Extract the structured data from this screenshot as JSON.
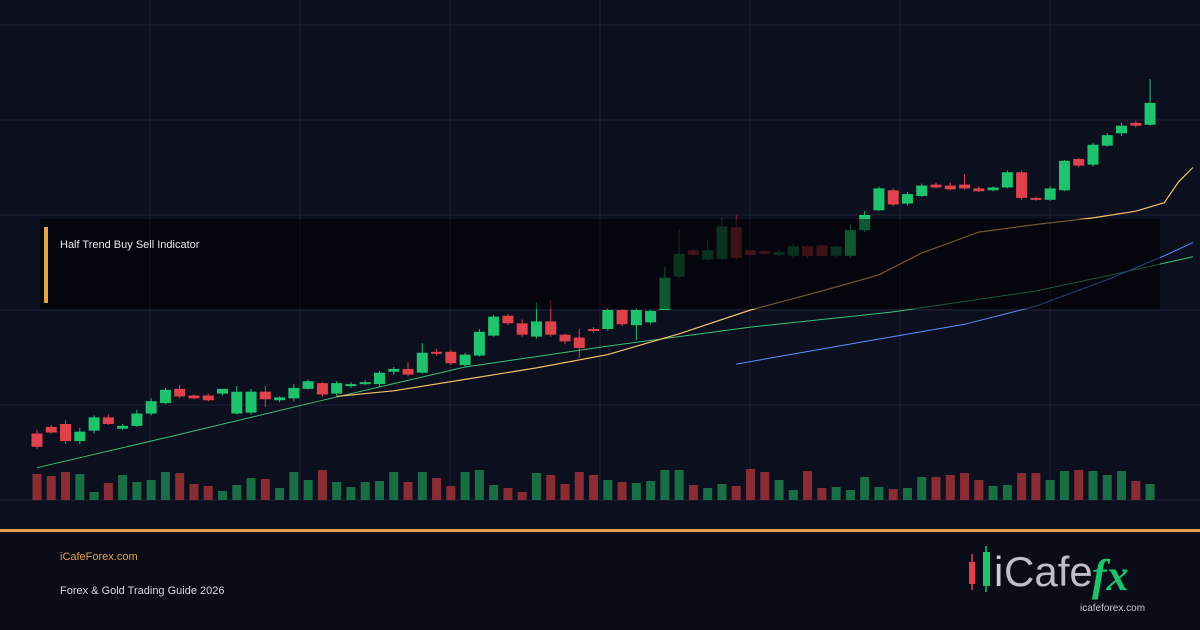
{
  "overlay": {
    "title": "Half Trend Buy Sell Indicator"
  },
  "footer": {
    "site": "iCafeForex.com",
    "guide": "Forex & Gold Trading Guide 2026"
  },
  "logo": {
    "text_i": "i",
    "text_cafe": "Cafe",
    "text_fx": "fx",
    "site": "icafeforex.com"
  },
  "colors": {
    "up": "#1fc36e",
    "up_dim": "#1a6e45",
    "down": "#e0424d",
    "down_dim": "#8a2c33",
    "ma_fast": "#f2c26a",
    "ma_slow": "#3fbf77",
    "ma_mid": "#5f8fff",
    "grid": "#1e2338",
    "accent": "#e2a24a"
  },
  "chart_data": {
    "type": "candlestick",
    "title": "",
    "xlabel": "",
    "ylabel": "",
    "grid": true,
    "ylim": [
      0,
      500
    ],
    "candles": [
      [
        0,
        430,
        444,
        446,
        426
      ],
      [
        1,
        423,
        429,
        430,
        421
      ],
      [
        2,
        420,
        438,
        441,
        416
      ],
      [
        3,
        438,
        428,
        441,
        424
      ],
      [
        4,
        427,
        413,
        430,
        411
      ],
      [
        5,
        413,
        420,
        421,
        410
      ],
      [
        6,
        425,
        422,
        426,
        420
      ],
      [
        7,
        422,
        409,
        423,
        405
      ],
      [
        8,
        409,
        396,
        411,
        393
      ],
      [
        9,
        398,
        384,
        399,
        382
      ],
      [
        10,
        383,
        391,
        393,
        379
      ],
      [
        11,
        390,
        393,
        394,
        389
      ],
      [
        12,
        390,
        395,
        396,
        388
      ],
      [
        13,
        388,
        383,
        390,
        386
      ],
      [
        14,
        409,
        386,
        410,
        380
      ],
      [
        15,
        408,
        386,
        410,
        383
      ],
      [
        16,
        386,
        394,
        402,
        380
      ],
      [
        17,
        395,
        392,
        397,
        391
      ],
      [
        18,
        393,
        382,
        396,
        378
      ],
      [
        19,
        383,
        375,
        384,
        373
      ],
      [
        20,
        377,
        389,
        391,
        376
      ],
      [
        21,
        388,
        377,
        390,
        375
      ],
      [
        22,
        380,
        378,
        382,
        376
      ],
      [
        23,
        378,
        376,
        379,
        374
      ],
      [
        24,
        378,
        366,
        381,
        364
      ],
      [
        25,
        365,
        362,
        368,
        360
      ],
      [
        26,
        362,
        368,
        370,
        355
      ],
      [
        27,
        366,
        345,
        367,
        335
      ],
      [
        28,
        344,
        345,
        348,
        341
      ],
      [
        29,
        344,
        356,
        358,
        342
      ],
      [
        30,
        358,
        347,
        360,
        345
      ],
      [
        31,
        348,
        323,
        349,
        320
      ],
      [
        32,
        327,
        307,
        328,
        305
      ],
      [
        33,
        306,
        314,
        316,
        304
      ],
      [
        34,
        314,
        326,
        328,
        310
      ],
      [
        35,
        328,
        312,
        330,
        292
      ],
      [
        36,
        312,
        326,
        328,
        290
      ],
      [
        37,
        326,
        333,
        336,
        325
      ],
      [
        38,
        329,
        340,
        350,
        320
      ],
      [
        39,
        320,
        321,
        324,
        318
      ],
      [
        40,
        320,
        300,
        322,
        298
      ],
      [
        41,
        300,
        315,
        317,
        299
      ],
      [
        42,
        316,
        300,
        332,
        298
      ],
      [
        43,
        313,
        301,
        315,
        300
      ],
      [
        44,
        300,
        266,
        300,
        255
      ],
      [
        45,
        265,
        241,
        267,
        215
      ],
      [
        46,
        237,
        242,
        244,
        236
      ],
      [
        47,
        247,
        237,
        249,
        227
      ],
      [
        48,
        246,
        212,
        247,
        203
      ],
      [
        49,
        213,
        245,
        248,
        200
      ],
      [
        50,
        237,
        242,
        243,
        236
      ],
      [
        51,
        238,
        241,
        242,
        237
      ],
      [
        52,
        242,
        239,
        243,
        237
      ],
      [
        53,
        243,
        233,
        245,
        230
      ],
      [
        54,
        233,
        243,
        245,
        232
      ],
      [
        55,
        232,
        243,
        244,
        231
      ],
      [
        56,
        243,
        233,
        245,
        232
      ],
      [
        57,
        243,
        216,
        245,
        210
      ],
      [
        58,
        216,
        200,
        218,
        196
      ],
      [
        59,
        195,
        172,
        196,
        170
      ],
      [
        60,
        174,
        189,
        191,
        172
      ],
      [
        61,
        188,
        178,
        190,
        176
      ],
      [
        62,
        180,
        169,
        181,
        167
      ],
      [
        63,
        168,
        171,
        172,
        166
      ],
      [
        64,
        169,
        173,
        174,
        166
      ],
      [
        65,
        168,
        172,
        173,
        157
      ],
      [
        66,
        172,
        175,
        176,
        170
      ],
      [
        67,
        174,
        171,
        175,
        170
      ],
      [
        68,
        171,
        155,
        172,
        153
      ],
      [
        69,
        155,
        182,
        184,
        153
      ],
      [
        70,
        182,
        184,
        185,
        181
      ],
      [
        71,
        184,
        172,
        185,
        170
      ],
      [
        72,
        174,
        143,
        175,
        142
      ],
      [
        73,
        141,
        148,
        150,
        140
      ],
      [
        74,
        147,
        126,
        149,
        124
      ],
      [
        75,
        127,
        116,
        128,
        114
      ],
      [
        76,
        114,
        106,
        117,
        103
      ],
      [
        77,
        103,
        106,
        108,
        101
      ],
      [
        78,
        105,
        82,
        106,
        57
      ]
    ],
    "volume": [
      [
        0,
        26
      ],
      [
        1,
        24
      ],
      [
        2,
        28
      ],
      [
        3,
        26
      ],
      [
        4,
        8
      ],
      [
        5,
        17
      ],
      [
        6,
        25
      ],
      [
        7,
        18
      ],
      [
        8,
        20
      ],
      [
        9,
        28
      ],
      [
        10,
        27
      ],
      [
        11,
        16
      ],
      [
        12,
        14
      ],
      [
        13,
        9
      ],
      [
        14,
        15
      ],
      [
        15,
        22
      ],
      [
        16,
        21
      ],
      [
        17,
        12
      ],
      [
        18,
        28
      ],
      [
        19,
        20
      ],
      [
        20,
        30
      ],
      [
        21,
        18
      ],
      [
        22,
        13
      ],
      [
        23,
        18
      ],
      [
        24,
        19
      ],
      [
        25,
        28
      ],
      [
        26,
        18
      ],
      [
        27,
        28
      ],
      [
        28,
        22
      ],
      [
        29,
        14
      ],
      [
        30,
        28
      ],
      [
        31,
        30
      ],
      [
        32,
        15
      ],
      [
        33,
        12
      ],
      [
        34,
        8
      ],
      [
        35,
        27
      ],
      [
        36,
        25
      ],
      [
        37,
        16
      ],
      [
        38,
        28
      ],
      [
        39,
        25
      ],
      [
        40,
        20
      ],
      [
        41,
        18
      ],
      [
        42,
        17
      ],
      [
        43,
        19
      ],
      [
        44,
        30
      ],
      [
        45,
        30
      ],
      [
        46,
        15
      ],
      [
        47,
        12
      ],
      [
        48,
        16
      ],
      [
        49,
        14
      ],
      [
        50,
        31
      ],
      [
        51,
        28
      ],
      [
        52,
        20
      ],
      [
        53,
        10
      ],
      [
        54,
        29
      ],
      [
        55,
        12
      ],
      [
        56,
        13
      ],
      [
        57,
        10
      ],
      [
        58,
        23
      ],
      [
        59,
        13
      ],
      [
        60,
        11
      ],
      [
        61,
        12
      ],
      [
        62,
        23
      ],
      [
        63,
        23
      ],
      [
        64,
        25
      ],
      [
        65,
        27
      ],
      [
        66,
        20
      ],
      [
        67,
        14
      ],
      [
        68,
        15
      ],
      [
        69,
        27
      ],
      [
        70,
        27
      ],
      [
        71,
        20
      ],
      [
        72,
        29
      ],
      [
        73,
        30
      ],
      [
        74,
        29
      ],
      [
        75,
        25
      ],
      [
        76,
        29
      ],
      [
        77,
        19
      ],
      [
        78,
        16
      ]
    ],
    "ma_fast": [
      [
        21,
        391
      ],
      [
        25,
        385
      ],
      [
        30,
        373
      ],
      [
        35,
        361
      ],
      [
        40,
        347
      ],
      [
        45,
        325
      ],
      [
        50,
        300
      ],
      [
        55,
        280
      ],
      [
        59,
        263
      ],
      [
        62,
        240
      ],
      [
        66,
        218
      ],
      [
        70,
        210
      ],
      [
        74,
        203
      ],
      [
        77,
        196
      ],
      [
        79,
        187
      ],
      [
        80,
        165
      ],
      [
        81,
        150
      ]
    ],
    "ma_slow": [
      [
        0,
        466
      ],
      [
        10,
        431
      ],
      [
        20,
        395
      ],
      [
        30,
        360
      ],
      [
        40,
        338
      ],
      [
        50,
        318
      ],
      [
        60,
        302
      ],
      [
        70,
        280
      ],
      [
        75,
        264
      ],
      [
        81,
        244
      ]
    ],
    "ma_mid": [
      [
        49,
        357
      ],
      [
        55,
        341
      ],
      [
        60,
        328
      ],
      [
        65,
        315
      ],
      [
        70,
        296
      ],
      [
        75,
        268
      ],
      [
        79,
        243
      ],
      [
        81,
        229
      ]
    ]
  }
}
